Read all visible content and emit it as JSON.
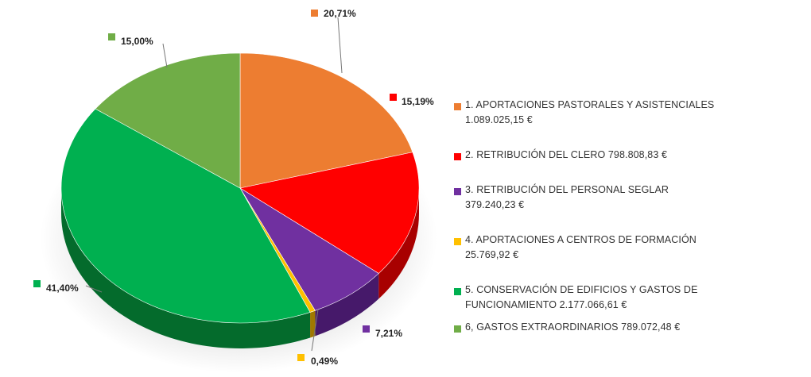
{
  "chart_data": {
    "type": "pie",
    "style": "3d",
    "legend_position": "right",
    "slices": [
      {
        "label": "1. APORTACIONES  PASTORALES Y ASISTENCIALES 1.089.025,15  €",
        "value": 20.71,
        "value_label": "20,71%",
        "color": "#ED7D31",
        "side_color": "#B85E20"
      },
      {
        "label": "2. RETRIBUCIÓN DEL CLERO 798.808,83  €",
        "value": 15.19,
        "value_label": "15,19%",
        "color": "#FF0000",
        "side_color": "#A80000"
      },
      {
        "label": "3. RETRIBUCIÓN DEL PERSONAL SEGLAR 379.240,23  €",
        "value": 7.21,
        "value_label": "7,21%",
        "color": "#7030A0",
        "side_color": "#46196A"
      },
      {
        "label": "4. APORTACIONES A CENTROS DE FORMACIÓN  25.769,92  €",
        "value": 0.49,
        "value_label": "0,49%",
        "color": "#FFC000",
        "side_color": "#A07800"
      },
      {
        "label": "5. CONSERVACIÓN DE EDIFICIOS Y GASTOS DE FUNCIONAMIENTO 2.177.066,61 €",
        "value": 41.4,
        "value_label": "41,40%",
        "color": "#00B050",
        "side_color": "#046B2C"
      },
      {
        "label": "6, GASTOS EXTRAORDINARIOS 789.072,48  €",
        "value": 15.0,
        "value_label": "15,00%",
        "color": "#70AD47",
        "side_color": "#466D2C"
      }
    ]
  }
}
